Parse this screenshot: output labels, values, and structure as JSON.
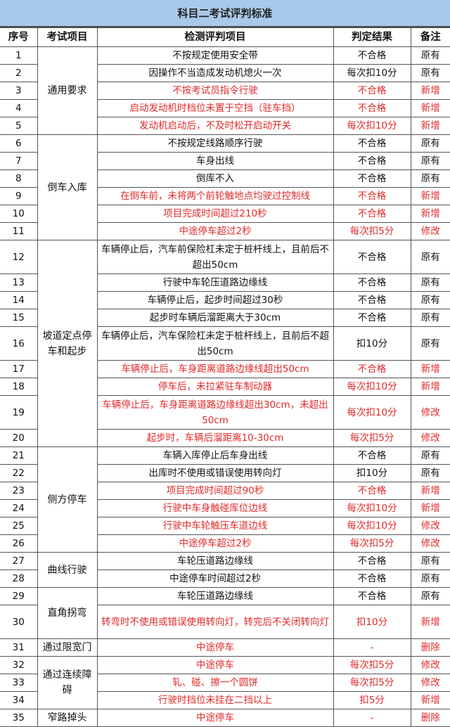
{
  "title": "科目二考试评判标准",
  "headers": [
    "序号",
    "考试项目",
    "检测评判项目",
    "判定结果",
    "备注"
  ],
  "colors": {
    "header_bg": "#a9c9ea",
    "red_text": "#e02a2a",
    "black_text": "#111111"
  },
  "groups": [
    {
      "label": "通用要求",
      "rows": [
        1,
        5
      ]
    },
    {
      "label": "倒车入库",
      "rows": [
        6,
        11
      ]
    },
    {
      "label": "坡道定点停车和起步",
      "rows": [
        12,
        20
      ]
    },
    {
      "label": "侧方停车",
      "rows": [
        21,
        26
      ]
    },
    {
      "label": "曲线行驶",
      "rows": [
        27,
        28
      ]
    },
    {
      "label": "直角拐弯",
      "rows": [
        29,
        30
      ]
    },
    {
      "label": "通过限宽门",
      "rows": [
        31,
        31
      ]
    },
    {
      "label": "通过连续障碍",
      "rows": [
        32,
        34
      ]
    },
    {
      "label": "窄路掉头",
      "rows": [
        35,
        35
      ]
    }
  ],
  "rows": [
    {
      "n": "1",
      "item": "不按规定使用安全带",
      "result": "不合格",
      "note": "原有",
      "red": false
    },
    {
      "n": "2",
      "item": "因操作不当造成发动机熄火一次",
      "result": "每次扣10分",
      "note": "原有",
      "red": false
    },
    {
      "n": "3",
      "item": "不按考试员指令行驶",
      "result": "不合格",
      "note": "新增",
      "red": true
    },
    {
      "n": "4",
      "item": "启动发动机时档位未置于空挡（驻车挡）",
      "result": "不合格",
      "note": "新增",
      "red": true
    },
    {
      "n": "5",
      "item": "发动机启动后，不及时松开启动开关",
      "result": "每次扣10分",
      "note": "新增",
      "red": true
    },
    {
      "n": "6",
      "item": "不按规定线路顺序行驶",
      "result": "不合格",
      "note": "原有",
      "red": false
    },
    {
      "n": "7",
      "item": "车身出线",
      "result": "不合格",
      "note": "原有",
      "red": false
    },
    {
      "n": "8",
      "item": "倒库不入",
      "result": "不合格",
      "note": "原有",
      "red": false
    },
    {
      "n": "9",
      "item": "在倒车前，未将两个前轮触地点均驶过控制线",
      "result": "不合格",
      "note": "新增",
      "red": true
    },
    {
      "n": "10",
      "item": "项目完成时间超过210秒",
      "result": "不合格",
      "note": "新增",
      "red": true
    },
    {
      "n": "11",
      "item": "中途停车超过2秒",
      "result": "每次扣5分",
      "note": "修改",
      "red": true
    },
    {
      "n": "12",
      "item": "车辆停止后，汽车前保险杠未定于桩杆线上，且前后不超出50cm",
      "result": "不合格",
      "note": "原有",
      "red": false,
      "double": true
    },
    {
      "n": "13",
      "item": "行驶中车轮压道路边缘线",
      "result": "不合格",
      "note": "原有",
      "red": false
    },
    {
      "n": "14",
      "item": "车辆停止后，起步时间超过30秒",
      "result": "不合格",
      "note": "原有",
      "red": false
    },
    {
      "n": "15",
      "item": "起步时车辆后溜距离大于30cm",
      "result": "不合格",
      "note": "原有",
      "red": false
    },
    {
      "n": "16",
      "item": "车辆停止后，汽车保险杠未定于桩杆线上，且前后不超出50cm",
      "result": "扣10分",
      "note": "原有",
      "red": false,
      "double": true
    },
    {
      "n": "17",
      "item": "车辆停止后，车身距离道路边缘线超出50cm",
      "result": "不合格",
      "note": "新增",
      "red": true
    },
    {
      "n": "18",
      "item": "停车后，未拉紧驻车制动器",
      "result": "每次扣10分",
      "note": "新增",
      "red": true
    },
    {
      "n": "19",
      "item": "车辆停止后，车身距离道路边缘线超出30cm，未超出50cm",
      "result": "每次扣10分",
      "note": "修改",
      "red": true,
      "double": true
    },
    {
      "n": "20",
      "item": "起步时，车辆后溜距离10-30cm",
      "result": "每次扣5分",
      "note": "修改",
      "red": true
    },
    {
      "n": "21",
      "item": "车辆入库停止后车身出线",
      "result": "不合格",
      "note": "原有",
      "red": false
    },
    {
      "n": "22",
      "item": "出库时不使用或错误使用转向灯",
      "result": "扣10分",
      "note": "原有",
      "red": false
    },
    {
      "n": "23",
      "item": "项目完成时间超过90秒",
      "result": "不合格",
      "note": "新增",
      "red": true
    },
    {
      "n": "24",
      "item": "行驶中车身触碰库位边线",
      "result": "每次扣10分",
      "note": "新增",
      "red": true
    },
    {
      "n": "25",
      "item": "行驶中车轮触压车道边线",
      "result": "每次扣10分",
      "note": "修改",
      "red": true
    },
    {
      "n": "26",
      "item": "中途停车超过2秒",
      "result": "每次扣5分",
      "note": "修改",
      "red": true
    },
    {
      "n": "27",
      "item": "车轮压道路边缘线",
      "result": "不合格",
      "note": "原有",
      "red": false
    },
    {
      "n": "28",
      "item": "中途停车时间超过2秒",
      "result": "不合格",
      "note": "原有",
      "red": false
    },
    {
      "n": "29",
      "item": "车轮压道路边缘线",
      "result": "不合格",
      "note": "原有",
      "red": false
    },
    {
      "n": "30",
      "item": "转弯时不使用或错误使用转向灯，转完后不关闭转向灯",
      "result": "扣10分",
      "note": "新增",
      "red": true,
      "double": true
    },
    {
      "n": "31",
      "item": "中途停车",
      "result": "-",
      "note": "删除",
      "red": true
    },
    {
      "n": "32",
      "item": "中途停车",
      "result": "每次扣5分",
      "note": "修改",
      "red": true
    },
    {
      "n": "33",
      "item": "轧、碰、擦一个圆饼",
      "result": "每次扣5分",
      "note": "修改",
      "red": true
    },
    {
      "n": "34",
      "item": "行驶时挡位未挂在二挡以上",
      "result": "扣5分",
      "note": "新增",
      "red": true
    },
    {
      "n": "35",
      "item": "中途停车",
      "result": "-",
      "note": "删除",
      "red": true
    }
  ]
}
